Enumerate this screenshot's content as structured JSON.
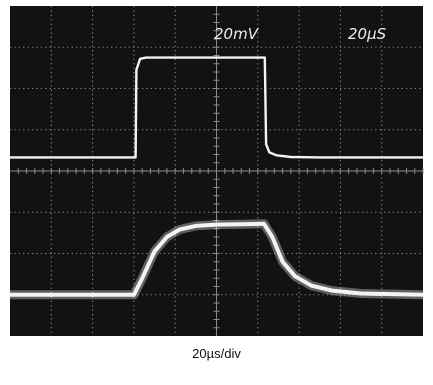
{
  "chart_data": {
    "type": "line",
    "title": "",
    "display": "oscilloscope",
    "grid": true,
    "divisions": {
      "x": 10,
      "y": 8
    },
    "annotations": {
      "volts_per_div": "20mV",
      "time_per_div": "20µS",
      "caption": "20µs/div"
    },
    "xunit": "div",
    "yunit": "div",
    "xlim": [
      0,
      10
    ],
    "ylim": [
      -4,
      4
    ],
    "series": [
      {
        "x": [
          0,
          3.04,
          3.06,
          3.15,
          3.3,
          6.17,
          6.2,
          6.28,
          6.45,
          6.8,
          7.5,
          10
        ],
        "y": [
          0.33,
          0.33,
          2.45,
          2.72,
          2.75,
          2.75,
          0.65,
          0.45,
          0.38,
          0.34,
          0.33,
          0.33
        ]
      },
      {
        "x": [
          0,
          3.0,
          3.2,
          3.5,
          3.8,
          4.1,
          4.5,
          5.0,
          6.15,
          6.35,
          6.6,
          6.9,
          7.3,
          7.8,
          8.5,
          10
        ],
        "y": [
          -3.0,
          -3.0,
          -2.6,
          -1.95,
          -1.6,
          -1.42,
          -1.33,
          -1.3,
          -1.28,
          -1.6,
          -2.2,
          -2.55,
          -2.78,
          -2.9,
          -2.97,
          -3.0
        ]
      }
    ],
    "colors": {
      "screen": "#121212",
      "grid": "#8a8a8a",
      "trace": "#f3f3f3"
    }
  }
}
